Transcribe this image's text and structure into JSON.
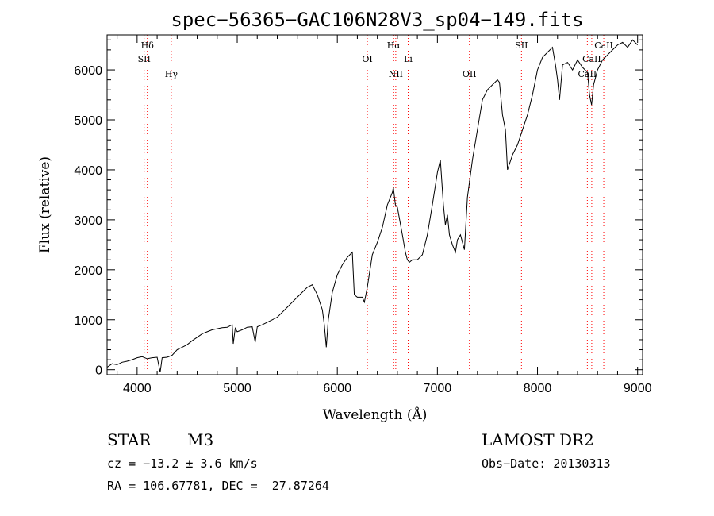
{
  "chart_data": {
    "type": "line",
    "title": "spec−56365−GAC106N28V3_sp04−149.fits",
    "xlabel": "Wavelength (Å)",
    "ylabel": "Flux (relative)",
    "xlim": [
      3700,
      9050
    ],
    "ylim": [
      -100,
      6700
    ],
    "x_ticks": [
      4000,
      5000,
      6000,
      7000,
      8000,
      9000
    ],
    "y_ticks": [
      0,
      1000,
      2000,
      3000,
      4000,
      5000,
      6000
    ],
    "line_color": "#000000",
    "marker_color": "#ff0000",
    "series": [
      {
        "x": [
          3700,
          3750,
          3800,
          3850,
          3900,
          3950,
          4000,
          4050,
          4100,
          4150,
          4200,
          4230,
          4250,
          4300,
          4350,
          4400,
          4450,
          4500,
          4550,
          4600,
          4650,
          4700,
          4750,
          4800,
          4850,
          4900,
          4950,
          4960,
          4980,
          5000,
          5050,
          5100,
          5150,
          5180,
          5200,
          5250,
          5300,
          5350,
          5400,
          5450,
          5500,
          5550,
          5600,
          5650,
          5700,
          5750,
          5800,
          5850,
          5870,
          5890,
          5910,
          5950,
          6000,
          6050,
          6100,
          6150,
          6160,
          6170,
          6200,
          6250,
          6270,
          6300,
          6350,
          6400,
          6450,
          6500,
          6550,
          6560,
          6580,
          6600,
          6650,
          6680,
          6700,
          6720,
          6750,
          6800,
          6850,
          6900,
          6950,
          7000,
          7030,
          7060,
          7080,
          7100,
          7120,
          7150,
          7180,
          7200,
          7230,
          7270,
          7300,
          7350,
          7400,
          7450,
          7500,
          7550,
          7600,
          7620,
          7650,
          7680,
          7700,
          7750,
          7800,
          7850,
          7900,
          7950,
          8000,
          8050,
          8100,
          8150,
          8180,
          8200,
          8220,
          8250,
          8300,
          8350,
          8400,
          8450,
          8500,
          8520,
          8540,
          8560,
          8600,
          8650,
          8700,
          8750,
          8800,
          8850,
          8900,
          8950,
          9000
        ],
        "y": [
          50,
          120,
          100,
          150,
          170,
          200,
          240,
          260,
          220,
          240,
          250,
          -50,
          240,
          250,
          290,
          400,
          450,
          500,
          580,
          650,
          720,
          760,
          800,
          820,
          840,
          850,
          900,
          520,
          830,
          760,
          800,
          850,
          860,
          550,
          860,
          900,
          950,
          1000,
          1050,
          1150,
          1250,
          1350,
          1450,
          1550,
          1650,
          1700,
          1500,
          1200,
          900,
          450,
          1000,
          1550,
          1900,
          2100,
          2250,
          2350,
          1900,
          1500,
          1450,
          1450,
          1350,
          1650,
          2300,
          2550,
          2850,
          3300,
          3550,
          3650,
          3300,
          3250,
          2700,
          2350,
          2200,
          2150,
          2200,
          2200,
          2300,
          2700,
          3300,
          3950,
          4200,
          3300,
          2900,
          3100,
          2700,
          2500,
          2350,
          2600,
          2700,
          2400,
          3450,
          4200,
          4800,
          5400,
          5600,
          5700,
          5800,
          5750,
          5100,
          4800,
          4000,
          4300,
          4500,
          4800,
          5100,
          5500,
          6000,
          6250,
          6350,
          6450,
          6100,
          5800,
          5400,
          6100,
          6150,
          6000,
          6200,
          6050,
          5950,
          5500,
          5300,
          5700,
          6000,
          6200,
          6300,
          6400,
          6500,
          6550,
          6450,
          6600,
          6500
        ]
      }
    ],
    "spectral_lines": [
      {
        "label": "Hδ",
        "x": 4102,
        "row": 0
      },
      {
        "label": "SII",
        "x": 4070,
        "row": 1
      },
      {
        "label": "Hγ",
        "x": 4341,
        "row": 2
      },
      {
        "label": "OI",
        "x": 6300,
        "row": 1
      },
      {
        "label": "Hα",
        "x": 6563,
        "row": 0
      },
      {
        "label": "NII",
        "x": 6584,
        "row": 2
      },
      {
        "label": "Li",
        "x": 6708,
        "row": 1
      },
      {
        "label": "OII",
        "x": 7320,
        "row": 2
      },
      {
        "label": "SII",
        "x": 7840,
        "row": 0
      },
      {
        "label": "CaII",
        "x": 8662,
        "row": 0
      },
      {
        "label": "CaII",
        "x": 8542,
        "row": 1
      },
      {
        "label": "CaII",
        "x": 8498,
        "row": 2
      }
    ]
  },
  "info": {
    "object_class": "STAR",
    "subclass": "M3",
    "survey": "LAMOST DR2",
    "cz": "cz = −13.2 ± 3.6 km/s",
    "obs_date": "Obs−Date: 20130313",
    "coords": "RA = 106.67781, DEC =  27.87264"
  }
}
